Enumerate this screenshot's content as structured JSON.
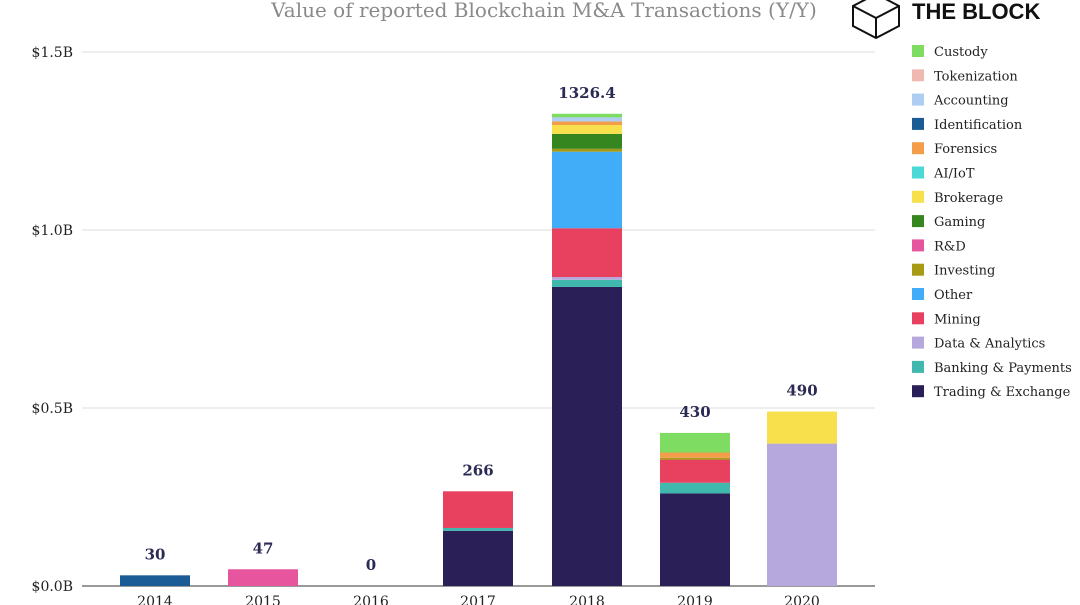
{
  "brand": {
    "name": "THE BLOCK"
  },
  "chart_data": {
    "type": "bar",
    "stacked": true,
    "title": "Value of reported Blockchain M&A Transactions (Y/Y)",
    "xlabel": "",
    "ylabel": "",
    "ylim": [
      0,
      1500
    ],
    "unit": "$M",
    "yticks": [
      {
        "value": 0,
        "label": "$0.0B"
      },
      {
        "value": 500,
        "label": "$0.5B"
      },
      {
        "value": 1000,
        "label": "$1.0B"
      },
      {
        "value": 1500,
        "label": "$1.5B"
      }
    ],
    "categories": [
      "2014",
      "2015",
      "2016",
      "2017",
      "2018",
      "2019",
      "2020"
    ],
    "totals": [
      "30",
      "47",
      "0",
      "266",
      "1326.4",
      "430",
      "490"
    ],
    "grid": true,
    "legend_position": "right",
    "series": [
      {
        "name": "Trading & Exchange",
        "color": "#2a1f57",
        "values": [
          0,
          0,
          0,
          155,
          840,
          260,
          0
        ]
      },
      {
        "name": "Banking & Payments",
        "color": "#41b8ad",
        "values": [
          0,
          0,
          0,
          8,
          20,
          30,
          0
        ]
      },
      {
        "name": "Data & Analytics",
        "color": "#b6a8dd",
        "values": [
          0,
          0,
          0,
          0,
          8,
          0,
          400
        ]
      },
      {
        "name": "Mining",
        "color": "#e8405f",
        "values": [
          0,
          0,
          0,
          103,
          137,
          65,
          0
        ]
      },
      {
        "name": "Other",
        "color": "#41acf7",
        "values": [
          0,
          0,
          0,
          0,
          215,
          0,
          0
        ]
      },
      {
        "name": "Investing",
        "color": "#a79b16",
        "values": [
          0,
          0,
          0,
          0,
          8,
          5,
          0
        ]
      },
      {
        "name": "R&D",
        "color": "#e7559f",
        "values": [
          0,
          47,
          0,
          0,
          0,
          0,
          0
        ]
      },
      {
        "name": "Gaming",
        "color": "#36861f",
        "values": [
          0,
          0,
          0,
          0,
          42,
          0,
          0
        ]
      },
      {
        "name": "Brokerage",
        "color": "#f7e04c",
        "values": [
          0,
          0,
          0,
          0,
          25,
          0,
          90
        ]
      },
      {
        "name": "AI/IoT",
        "color": "#4ad9d6",
        "values": [
          0,
          0,
          0,
          0,
          0,
          0,
          0
        ]
      },
      {
        "name": "Forensics",
        "color": "#f39d4a",
        "values": [
          0,
          0,
          0,
          0,
          10,
          15,
          0
        ]
      },
      {
        "name": "Identification",
        "color": "#1b5c97",
        "values": [
          30,
          0,
          0,
          0,
          0,
          0,
          0
        ]
      },
      {
        "name": "Accounting",
        "color": "#aecdf2",
        "values": [
          0,
          0,
          0,
          0,
          11.4,
          0,
          0
        ]
      },
      {
        "name": "Tokenization",
        "color": "#efb8b1",
        "values": [
          0,
          0,
          0,
          0,
          0,
          0,
          0
        ]
      },
      {
        "name": "Custody",
        "color": "#7fdc62",
        "values": [
          0,
          0,
          0,
          0,
          10,
          55,
          0
        ]
      }
    ]
  }
}
